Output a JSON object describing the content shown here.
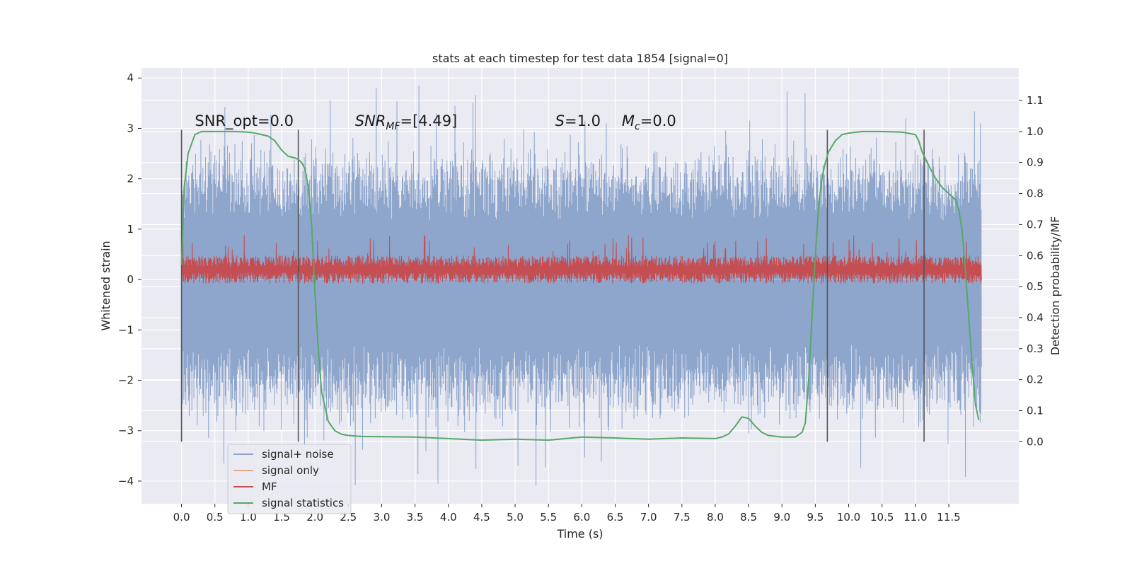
{
  "chart_data": {
    "type": "line",
    "title": "stats at each timestep for test data 1854 [signal=0]",
    "xlabel": "Time (s)",
    "ylabel_left": "Whitened strain",
    "ylabel_right": "Detection probability/MF",
    "xlim": [
      -0.6,
      12.55
    ],
    "ylim_left": [
      -4.45,
      4.2
    ],
    "ylim_right": [
      -0.2,
      1.205
    ],
    "x_ticks": [
      0.0,
      0.5,
      1.0,
      1.5,
      2.0,
      2.5,
      3.0,
      3.5,
      4.0,
      4.5,
      5.0,
      5.5,
      6.0,
      6.5,
      7.0,
      7.5,
      8.0,
      8.5,
      9.0,
      9.5,
      10.0,
      10.5,
      11.0,
      11.5
    ],
    "x_tick_labels": [
      "0.0",
      "0.5",
      "1.0",
      "1.5",
      "2.0",
      "2.5",
      "3.0",
      "3.5",
      "4.0",
      "4.5",
      "5.0",
      "5.5",
      "6.0",
      "6.5",
      "7.0",
      "7.5",
      "8.0",
      "8.5",
      "9.0",
      "9.5",
      "10.0",
      "10.5",
      "11.0",
      "11.5"
    ],
    "y_left_ticks": [
      -4,
      -3,
      -2,
      -1,
      0,
      1,
      2,
      3,
      4
    ],
    "y_left_tick_labels": [
      "−4",
      "−3",
      "−2",
      "−1",
      "0",
      "1",
      "2",
      "3",
      "4"
    ],
    "y_right_ticks": [
      0.0,
      0.1,
      0.2,
      0.3,
      0.4,
      0.5,
      0.6,
      0.7,
      0.8,
      0.9,
      1.0,
      1.1
    ],
    "y_right_tick_labels": [
      "0.0",
      "0.1",
      "0.2",
      "0.3",
      "0.4",
      "0.5",
      "0.6",
      "0.7",
      "0.8",
      "0.9",
      "1.0",
      "1.1"
    ],
    "grid": true,
    "legend_position": "bottom-left",
    "annotations": [
      {
        "text": "SNR_opt=0.0",
        "x": 0.2,
        "y_left": 3.05
      },
      {
        "text": "SNR_MF=[4.49]",
        "x": 2.6,
        "y_left": 3.05
      },
      {
        "text": "S=1.0",
        "x": 5.6,
        "y_left": 3.05
      },
      {
        "text": "M_c=0.0",
        "x": 6.6,
        "y_left": 3.05
      }
    ],
    "vertical_markers": {
      "x": [
        0.0,
        1.75,
        9.68,
        11.13
      ],
      "y_left_range": [
        -3.22,
        2.97
      ],
      "color": "#555555"
    },
    "series": [
      {
        "name": "signal+ noise",
        "axis": "left",
        "color": "#8ea5cc",
        "x_range": [
          0.0,
          11.99
        ],
        "envelope_upper_typical": 2.1,
        "envelope_lower_typical": -2.3,
        "spike_max": 3.85,
        "spike_min": -4.1,
        "samples": 2400
      },
      {
        "name": "signal only",
        "axis": "left",
        "color": "#e8a98a",
        "x": [
          0.0,
          11.99
        ],
        "y": [
          0.0,
          0.0
        ]
      },
      {
        "name": "MF",
        "axis": "right",
        "color": "#c44e52",
        "x_range": [
          0.0,
          11.99
        ],
        "y_min_typical": 0.51,
        "y_max_typical": 0.6,
        "spike_max": 0.67,
        "samples": 2400
      },
      {
        "name": "signal statistics",
        "axis": "right",
        "color": "#55a868",
        "x": [
          0.0,
          0.04,
          0.1,
          0.15,
          0.2,
          0.3,
          0.5,
          0.8,
          1.0,
          1.1,
          1.2,
          1.3,
          1.4,
          1.5,
          1.6,
          1.7,
          1.75,
          1.8,
          1.85,
          1.9,
          1.95,
          2.0,
          2.05,
          2.1,
          2.2,
          2.3,
          2.4,
          2.5,
          2.7,
          3.0,
          3.5,
          4.0,
          4.5,
          5.0,
          5.5,
          6.0,
          6.5,
          7.0,
          7.5,
          8.0,
          8.1,
          8.2,
          8.3,
          8.4,
          8.5,
          8.6,
          8.7,
          8.8,
          9.0,
          9.2,
          9.3,
          9.35,
          9.4,
          9.45,
          9.5,
          9.55,
          9.6,
          9.65,
          9.7,
          9.8,
          9.9,
          10.0,
          10.2,
          10.5,
          10.8,
          11.0,
          11.05,
          11.1,
          11.2,
          11.3,
          11.4,
          11.5,
          11.6,
          11.65,
          11.7,
          11.75,
          11.8,
          11.85,
          11.9,
          11.95
        ],
        "y": [
          0.57,
          0.82,
          0.93,
          0.96,
          0.99,
          1.0,
          1.0,
          1.0,
          0.998,
          0.995,
          0.99,
          0.985,
          0.97,
          0.94,
          0.92,
          0.915,
          0.91,
          0.9,
          0.88,
          0.82,
          0.7,
          0.48,
          0.3,
          0.16,
          0.065,
          0.035,
          0.024,
          0.02,
          0.017,
          0.016,
          0.015,
          0.01,
          0.005,
          0.008,
          0.005,
          0.015,
          0.012,
          0.008,
          0.012,
          0.01,
          0.015,
          0.025,
          0.05,
          0.08,
          0.075,
          0.05,
          0.03,
          0.02,
          0.015,
          0.015,
          0.03,
          0.06,
          0.2,
          0.4,
          0.6,
          0.76,
          0.85,
          0.9,
          0.935,
          0.97,
          0.99,
          0.995,
          1.0,
          1.0,
          0.998,
          0.99,
          0.97,
          0.935,
          0.89,
          0.85,
          0.82,
          0.8,
          0.78,
          0.75,
          0.68,
          0.55,
          0.4,
          0.25,
          0.12,
          0.07
        ]
      }
    ]
  }
}
